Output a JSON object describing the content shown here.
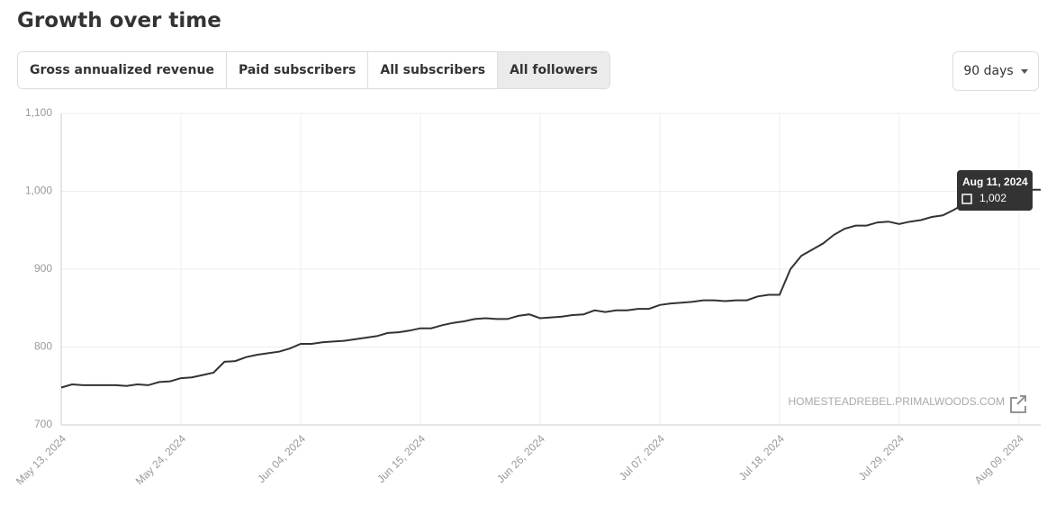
{
  "header": {
    "title": "Growth over time"
  },
  "tabs": {
    "items": [
      "Gross annualized revenue",
      "Paid subscribers",
      "All subscribers",
      "All followers"
    ],
    "active": 3
  },
  "range_select": {
    "label": "90 days"
  },
  "chart_data": {
    "type": "line",
    "color": "#333333",
    "grid": true,
    "x": [
      "2024-05-13",
      "2024-05-14",
      "2024-05-15",
      "2024-05-16",
      "2024-05-17",
      "2024-05-18",
      "2024-05-19",
      "2024-05-20",
      "2024-05-21",
      "2024-05-22",
      "2024-05-23",
      "2024-05-24",
      "2024-05-25",
      "2024-05-26",
      "2024-05-27",
      "2024-05-28",
      "2024-05-29",
      "2024-05-30",
      "2024-05-31",
      "2024-06-01",
      "2024-06-02",
      "2024-06-03",
      "2024-06-04",
      "2024-06-05",
      "2024-06-06",
      "2024-06-07",
      "2024-06-08",
      "2024-06-09",
      "2024-06-10",
      "2024-06-11",
      "2024-06-12",
      "2024-06-13",
      "2024-06-14",
      "2024-06-15",
      "2024-06-16",
      "2024-06-17",
      "2024-06-18",
      "2024-06-19",
      "2024-06-20",
      "2024-06-21",
      "2024-06-22",
      "2024-06-23",
      "2024-06-24",
      "2024-06-25",
      "2024-06-26",
      "2024-06-27",
      "2024-06-28",
      "2024-06-29",
      "2024-06-30",
      "2024-07-01",
      "2024-07-02",
      "2024-07-03",
      "2024-07-04",
      "2024-07-05",
      "2024-07-06",
      "2024-07-07",
      "2024-07-08",
      "2024-07-09",
      "2024-07-10",
      "2024-07-11",
      "2024-07-12",
      "2024-07-13",
      "2024-07-14",
      "2024-07-15",
      "2024-07-16",
      "2024-07-17",
      "2024-07-18",
      "2024-07-19",
      "2024-07-20",
      "2024-07-21",
      "2024-07-22",
      "2024-07-23",
      "2024-07-24",
      "2024-07-25",
      "2024-07-26",
      "2024-07-27",
      "2024-07-28",
      "2024-07-29",
      "2024-07-30",
      "2024-07-31",
      "2024-08-01",
      "2024-08-02",
      "2024-08-03",
      "2024-08-04",
      "2024-08-05",
      "2024-08-06",
      "2024-08-07",
      "2024-08-08",
      "2024-08-09",
      "2024-08-10",
      "2024-08-11"
    ],
    "values": [
      748,
      752,
      751,
      751,
      751,
      751,
      750,
      752,
      751,
      755,
      756,
      760,
      761,
      764,
      767,
      781,
      782,
      787,
      790,
      792,
      794,
      798,
      804,
      804,
      806,
      807,
      808,
      810,
      812,
      814,
      818,
      819,
      821,
      824,
      824,
      828,
      831,
      833,
      836,
      837,
      836,
      836,
      840,
      842,
      837,
      838,
      839,
      841,
      842,
      847,
      845,
      847,
      847,
      849,
      849,
      854,
      856,
      857,
      858,
      860,
      860,
      859,
      860,
      860,
      865,
      867,
      867,
      900,
      917,
      925,
      933,
      944,
      952,
      956,
      956,
      960,
      961,
      958,
      961,
      963,
      967,
      969,
      976,
      984,
      988,
      990,
      990,
      993,
      997,
      1002,
      1002
    ],
    "xlim": [
      "2024-05-13",
      "2024-08-11"
    ],
    "xticks": [
      {
        "value": "2024-05-13",
        "label": "May 13, 2024"
      },
      {
        "value": "2024-05-24",
        "label": "May 24, 2024"
      },
      {
        "value": "2024-06-04",
        "label": "Jun 04, 2024"
      },
      {
        "value": "2024-06-15",
        "label": "Jun 15, 2024"
      },
      {
        "value": "2024-06-26",
        "label": "Jun 26, 2024"
      },
      {
        "value": "2024-07-07",
        "label": "Jul 07, 2024"
      },
      {
        "value": "2024-07-18",
        "label": "Jul 18, 2024"
      },
      {
        "value": "2024-07-29",
        "label": "Jul 29, 2024"
      },
      {
        "value": "2024-08-09",
        "label": "Aug 09, 2024"
      }
    ],
    "ylim": [
      700,
      1100
    ],
    "yticks": [
      700,
      800,
      900,
      {
        "value": 1000,
        "label": "1,000"
      },
      {
        "value": 1100,
        "label": "1,100"
      }
    ],
    "tooltip": {
      "label": "Aug 11, 2024",
      "value": 1002,
      "value_label": "1,002"
    },
    "watermark": "HOMESTEADREBEL.PRIMALWOODS.COM"
  }
}
